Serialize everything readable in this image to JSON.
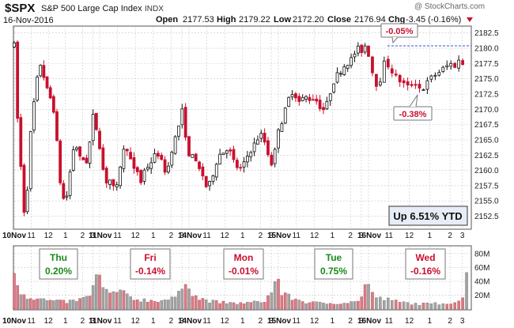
{
  "header": {
    "symbol": "$SPX",
    "name": "S&P 500 Large Cap Index",
    "exchange": "INDX",
    "date": "16-Nov-2016",
    "watermark": "@ StockCharts.com",
    "open_label": "Open",
    "open_value": "2177.53",
    "high_label": "High",
    "high_value": "2179.22",
    "low_label": "Low",
    "low_value": "2172.20",
    "close_label": "Close",
    "close_value": "2176.94",
    "chg_label": "Chg",
    "chg_value": "-3.45 (-0.16%)"
  },
  "annotations": {
    "ytd_label": "Up 6.51% YTD",
    "callout_top": "-0.05%",
    "callout_bottom": "-0.38%",
    "callout_top_price": 2180.39,
    "callout_bottom_price": 2172.2
  },
  "days": [
    {
      "name": "Thu",
      "pct": "0.20%",
      "color": "green"
    },
    {
      "name": "Fri",
      "pct": "-0.14%",
      "color": "red"
    },
    {
      "name": "Mon",
      "pct": "-0.01%",
      "color": "red"
    },
    {
      "name": "Tue",
      "pct": "0.75%",
      "color": "green"
    },
    {
      "name": "Wed",
      "pct": "-0.16%",
      "color": "red"
    }
  ],
  "colors": {
    "up": "#111111",
    "down": "#c8102e",
    "vol_up": "#a3a3a3",
    "vol_down": "#d97c85",
    "green_text": "#1a8a1a",
    "red_text": "#c8102e",
    "grid": "#c8c8c8"
  },
  "chart_data": {
    "type": "candlestick",
    "price_axis": {
      "ylim": [
        2150.5,
        2183.5
      ],
      "ticks": [
        "2182.5",
        "2180.0",
        "2177.5",
        "2175.0",
        "2172.5",
        "2170.0",
        "2167.5",
        "2165.0",
        "2162.5",
        "2160.0",
        "2157.5",
        "2155.0",
        "2152.5"
      ]
    },
    "volume_axis": {
      "ylim": [
        0,
        90
      ],
      "ticks": [
        "80M",
        "60M",
        "40M",
        "20M"
      ]
    },
    "x_labels": [
      {
        "day": 0,
        "pos": 0.0,
        "text": "10Nov",
        "bold": true
      },
      {
        "day": 0,
        "pos": 0.2,
        "text": "11"
      },
      {
        "day": 0,
        "pos": 0.4,
        "text": "12"
      },
      {
        "day": 0,
        "pos": 0.6,
        "text": "1"
      },
      {
        "day": 0,
        "pos": 0.8,
        "text": "2"
      },
      {
        "day": 0,
        "pos": 0.92,
        "text": "3"
      },
      {
        "day": 1,
        "pos": 0.0,
        "text": "11Nov",
        "bold": true
      },
      {
        "day": 1,
        "pos": 0.2,
        "text": "11"
      },
      {
        "day": 1,
        "pos": 0.4,
        "text": "12"
      },
      {
        "day": 1,
        "pos": 0.6,
        "text": "1"
      },
      {
        "day": 1,
        "pos": 0.8,
        "text": "2"
      },
      {
        "day": 1,
        "pos": 0.92,
        "text": "3"
      },
      {
        "day": 2,
        "pos": 0.0,
        "text": "14Nov",
        "bold": true
      },
      {
        "day": 2,
        "pos": 0.2,
        "text": "11"
      },
      {
        "day": 2,
        "pos": 0.4,
        "text": "12"
      },
      {
        "day": 2,
        "pos": 0.6,
        "text": "1"
      },
      {
        "day": 2,
        "pos": 0.8,
        "text": "2"
      },
      {
        "day": 2,
        "pos": 0.92,
        "text": "3"
      },
      {
        "day": 3,
        "pos": 0.0,
        "text": "15Nov",
        "bold": true
      },
      {
        "day": 3,
        "pos": 0.2,
        "text": "11"
      },
      {
        "day": 3,
        "pos": 0.4,
        "text": "12"
      },
      {
        "day": 3,
        "pos": 0.6,
        "text": "1"
      },
      {
        "day": 3,
        "pos": 0.8,
        "text": "2"
      },
      {
        "day": 3,
        "pos": 0.92,
        "text": "3"
      },
      {
        "day": 4,
        "pos": 0.0,
        "text": "16Nov",
        "bold": true
      },
      {
        "day": 4,
        "pos": 0.2,
        "text": "11"
      },
      {
        "day": 4,
        "pos": 0.4,
        "text": "12"
      },
      {
        "day": 4,
        "pos": 0.6,
        "text": "1"
      },
      {
        "day": 4,
        "pos": 0.8,
        "text": "2"
      },
      {
        "day": 4,
        "pos": 0.92,
        "text": "3"
      }
    ],
    "price_path": [
      [
        0.0,
        2180.5
      ],
      [
        0.04,
        2168
      ],
      [
        0.08,
        2160
      ],
      [
        0.12,
        2152.5
      ],
      [
        0.16,
        2158
      ],
      [
        0.2,
        2168
      ],
      [
        0.24,
        2172
      ],
      [
        0.28,
        2176
      ],
      [
        0.32,
        2178
      ],
      [
        0.36,
        2174
      ],
      [
        0.42,
        2172
      ],
      [
        0.48,
        2169
      ],
      [
        0.52,
        2160
      ],
      [
        0.56,
        2156
      ],
      [
        0.6,
        2154.5
      ],
      [
        0.64,
        2158
      ],
      [
        0.68,
        2163
      ],
      [
        0.72,
        2164.5
      ],
      [
        0.76,
        2162
      ],
      [
        0.8,
        2162
      ],
      [
        0.84,
        2161
      ],
      [
        0.88,
        2164
      ],
      [
        0.92,
        2169
      ],
      [
        0.96,
        2167
      ],
      [
        1.0,
        2164
      ],
      [
        1.04,
        2160
      ],
      [
        1.08,
        2158
      ],
      [
        1.12,
        2158.5
      ],
      [
        1.18,
        2156
      ],
      [
        1.22,
        2160
      ],
      [
        1.26,
        2163
      ],
      [
        1.3,
        2164
      ],
      [
        1.34,
        2162
      ],
      [
        1.38,
        2160
      ],
      [
        1.42,
        2160
      ],
      [
        1.46,
        2158
      ],
      [
        1.5,
        2160
      ],
      [
        1.56,
        2161
      ],
      [
        1.6,
        2162
      ],
      [
        1.64,
        2163
      ],
      [
        1.68,
        2162
      ],
      [
        1.72,
        2160
      ],
      [
        1.76,
        2160
      ],
      [
        1.8,
        2163
      ],
      [
        1.84,
        2165
      ],
      [
        1.88,
        2167
      ],
      [
        1.92,
        2170
      ],
      [
        1.96,
        2166
      ],
      [
        2.0,
        2162
      ],
      [
        2.04,
        2163
      ],
      [
        2.08,
        2161
      ],
      [
        2.12,
        2160
      ],
      [
        2.16,
        2159
      ],
      [
        2.2,
        2157
      ],
      [
        2.24,
        2158
      ],
      [
        2.28,
        2160
      ],
      [
        2.32,
        2162
      ],
      [
        2.36,
        2163
      ],
      [
        2.4,
        2163
      ],
      [
        2.44,
        2164
      ],
      [
        2.48,
        2162
      ],
      [
        2.52,
        2161
      ],
      [
        2.56,
        2160
      ],
      [
        2.6,
        2160.5
      ],
      [
        2.64,
        2162
      ],
      [
        2.68,
        2163
      ],
      [
        2.72,
        2164
      ],
      [
        2.76,
        2165
      ],
      [
        2.8,
        2166
      ],
      [
        2.84,
        2165
      ],
      [
        2.88,
        2163
      ],
      [
        2.92,
        2161
      ],
      [
        2.96,
        2163
      ],
      [
        3.0,
        2167
      ],
      [
        3.04,
        2168
      ],
      [
        3.08,
        2170
      ],
      [
        3.12,
        2172
      ],
      [
        3.16,
        2173
      ],
      [
        3.2,
        2172
      ],
      [
        3.24,
        2171
      ],
      [
        3.28,
        2172
      ],
      [
        3.32,
        2172
      ],
      [
        3.36,
        2171.5
      ],
      [
        3.4,
        2172
      ],
      [
        3.44,
        2171
      ],
      [
        3.48,
        2170
      ],
      [
        3.52,
        2170
      ],
      [
        3.56,
        2172
      ],
      [
        3.6,
        2174
      ],
      [
        3.64,
        2175.5
      ],
      [
        3.68,
        2176
      ],
      [
        3.72,
        2177
      ],
      [
        3.76,
        2177.5
      ],
      [
        3.8,
        2178
      ],
      [
        3.84,
        2179
      ],
      [
        3.88,
        2180
      ],
      [
        3.92,
        2179.5
      ],
      [
        3.96,
        2180.5
      ],
      [
        4.0,
        2179
      ],
      [
        4.04,
        2176
      ],
      [
        4.08,
        2174
      ],
      [
        4.12,
        2175
      ],
      [
        4.16,
        2178
      ],
      [
        4.2,
        2177
      ],
      [
        4.24,
        2176
      ],
      [
        4.28,
        2175
      ],
      [
        4.32,
        2174.5
      ],
      [
        4.36,
        2174
      ],
      [
        4.4,
        2173.5
      ],
      [
        4.44,
        2174.5
      ],
      [
        4.48,
        2174
      ],
      [
        4.52,
        2173
      ],
      [
        4.56,
        2174
      ],
      [
        4.6,
        2175
      ],
      [
        4.64,
        2175.5
      ],
      [
        4.68,
        2176
      ],
      [
        4.72,
        2176.5
      ],
      [
        4.76,
        2177
      ],
      [
        4.8,
        2177.5
      ],
      [
        4.84,
        2177
      ],
      [
        4.88,
        2178
      ],
      [
        4.92,
        2177.5
      ],
      [
        4.96,
        2176.94
      ]
    ],
    "volume_profile": [
      [
        0.0,
        62
      ],
      [
        0.02,
        40
      ],
      [
        0.06,
        28
      ],
      [
        0.15,
        18
      ],
      [
        0.4,
        12
      ],
      [
        0.6,
        10
      ],
      [
        0.8,
        14
      ],
      [
        0.9,
        22
      ],
      [
        0.95,
        40
      ],
      [
        0.98,
        58
      ],
      [
        1.0,
        45
      ],
      [
        1.02,
        30
      ],
      [
        1.1,
        22
      ],
      [
        1.2,
        25
      ],
      [
        1.3,
        20
      ],
      [
        1.4,
        14
      ],
      [
        1.6,
        12
      ],
      [
        1.8,
        14
      ],
      [
        1.9,
        22
      ],
      [
        1.95,
        40
      ],
      [
        1.98,
        55
      ],
      [
        2.0,
        38
      ],
      [
        2.02,
        25
      ],
      [
        2.1,
        15
      ],
      [
        2.3,
        10
      ],
      [
        2.5,
        8
      ],
      [
        2.7,
        9
      ],
      [
        2.85,
        12
      ],
      [
        2.93,
        25
      ],
      [
        2.97,
        45
      ],
      [
        2.99,
        58
      ],
      [
        3.0,
        40
      ],
      [
        3.02,
        25
      ],
      [
        3.1,
        18
      ],
      [
        3.3,
        10
      ],
      [
        3.5,
        8
      ],
      [
        3.7,
        9
      ],
      [
        3.85,
        10
      ],
      [
        3.93,
        18
      ],
      [
        3.97,
        38
      ],
      [
        3.99,
        50
      ],
      [
        4.0,
        35
      ],
      [
        4.02,
        22
      ],
      [
        4.1,
        16
      ],
      [
        4.3,
        10
      ],
      [
        4.5,
        7
      ],
      [
        4.7,
        8
      ],
      [
        4.85,
        10
      ],
      [
        4.92,
        15
      ],
      [
        4.96,
        45
      ],
      [
        4.99,
        62
      ]
    ]
  }
}
